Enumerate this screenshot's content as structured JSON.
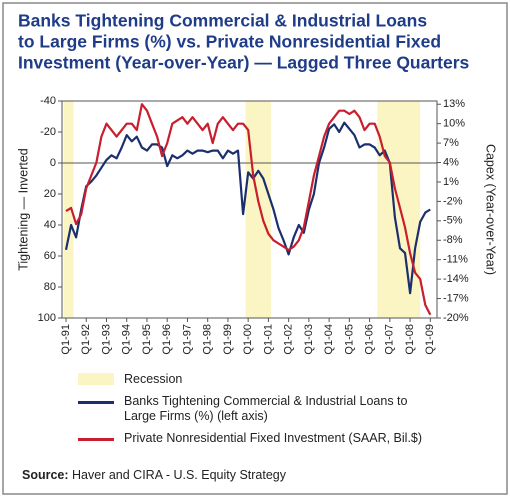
{
  "chart_data": {
    "type": "line",
    "title": [
      "Banks Tightening Commercial & Industrial Loans",
      "to Large Firms (%)  vs. Private Nonresidential Fixed",
      "Investment (Year-over-Year) — Lagged Three Quarters"
    ],
    "y_label": "Tightening — Inverted",
    "y2_label": "Capex (Year-over-Year)",
    "recession_label": "Recession",
    "recession_color": "#fbf5c3",
    "recessions": [
      [
        0,
        1
      ],
      [
        36,
        40
      ],
      [
        62,
        69.5
      ]
    ],
    "source_label": "Source:",
    "source": "Haver and CIRA - U.S. Equity Strategy",
    "categories": [
      "Q1-91",
      null,
      null,
      null,
      "Q1-92",
      null,
      null,
      null,
      "Q1-93",
      null,
      null,
      null,
      "Q1-94",
      null,
      null,
      null,
      "Q1-95",
      null,
      null,
      null,
      "Q1-96",
      null,
      null,
      null,
      "Q1-97",
      null,
      null,
      null,
      "Q1-98",
      null,
      null,
      null,
      "Q1-99",
      null,
      null,
      null,
      "Q1-00",
      null,
      null,
      null,
      "Q1-01",
      null,
      null,
      null,
      "Q1-02",
      null,
      null,
      null,
      "Q1-03",
      null,
      null,
      null,
      "Q1-04",
      null,
      null,
      null,
      "Q1-05",
      null,
      null,
      null,
      "Q1-06",
      null,
      null,
      null,
      "Q1-07",
      null,
      null,
      null,
      "Q1-08",
      null,
      null,
      null,
      "Q1-09"
    ],
    "series": [
      {
        "name": "Banks Tightening Commercial & Industrial Loans to Large Firms (%) (left axis)",
        "color": "#1b2f6e",
        "axis": "y",
        "values": [
          56,
          40,
          48,
          30,
          15,
          12,
          8,
          3,
          -2,
          -5,
          -3,
          -10,
          -18,
          -14,
          -17,
          -10,
          -8,
          -12,
          -12,
          -10,
          2,
          -5,
          -3,
          -5,
          -8,
          -6,
          -8,
          -8,
          -7,
          -8,
          -8,
          -3,
          -8,
          -6,
          -8,
          33,
          6,
          10,
          5,
          10,
          20,
          30,
          42,
          50,
          59,
          48,
          40,
          45,
          30,
          20,
          0,
          -10,
          -22,
          -25,
          -20,
          -26,
          -22,
          -18,
          -10,
          -12,
          -12,
          -10,
          -5,
          -8,
          0,
          35,
          55,
          58,
          84,
          55,
          38,
          32,
          30
        ]
      },
      {
        "name": "Private Nonresidential Fixed Investment (SAAR, Bil.$)",
        "color": "#c81e2e",
        "axis": "y2",
        "values": [
          -3.5,
          -3,
          -5.5,
          -4,
          0,
          2,
          4,
          8,
          10,
          9,
          8,
          9,
          10,
          10,
          9,
          13,
          12,
          10,
          8,
          5,
          7,
          10,
          10.5,
          11,
          10,
          11,
          10,
          9,
          10,
          7,
          10,
          11,
          10,
          9,
          10,
          10,
          9,
          2,
          -2,
          -5,
          -7,
          -8,
          -8.5,
          -9,
          -9.5,
          -9,
          -8,
          -6,
          -2,
          2,
          5,
          8,
          10,
          11,
          12,
          12,
          11.5,
          12,
          11,
          9,
          10,
          10,
          8,
          5,
          4,
          0,
          -3,
          -6,
          -10,
          -13,
          -14,
          -18,
          -19.5
        ]
      }
    ],
    "ylim": [
      100,
      -40
    ],
    "yticks": [
      -40,
      -20,
      0,
      20,
      40,
      60,
      80,
      100
    ],
    "y2lim": [
      -20,
      13.5
    ],
    "y2ticks": [
      {
        "value": 13,
        "label": "13%"
      },
      {
        "value": 10,
        "label": "10%"
      },
      {
        "value": 7,
        "label": "7%"
      },
      {
        "value": 4,
        "label": "4%"
      },
      {
        "value": 1,
        "label": "1%"
      },
      {
        "value": -2,
        "label": "-2%"
      },
      {
        "value": -5,
        "label": "-5%"
      },
      {
        "value": -8,
        "label": "-8%"
      },
      {
        "value": -11,
        "label": "-11%"
      },
      {
        "value": -14,
        "label": "-14%"
      },
      {
        "value": -17,
        "label": "-17%"
      },
      {
        "value": -20,
        "label": "-20%"
      }
    ]
  }
}
